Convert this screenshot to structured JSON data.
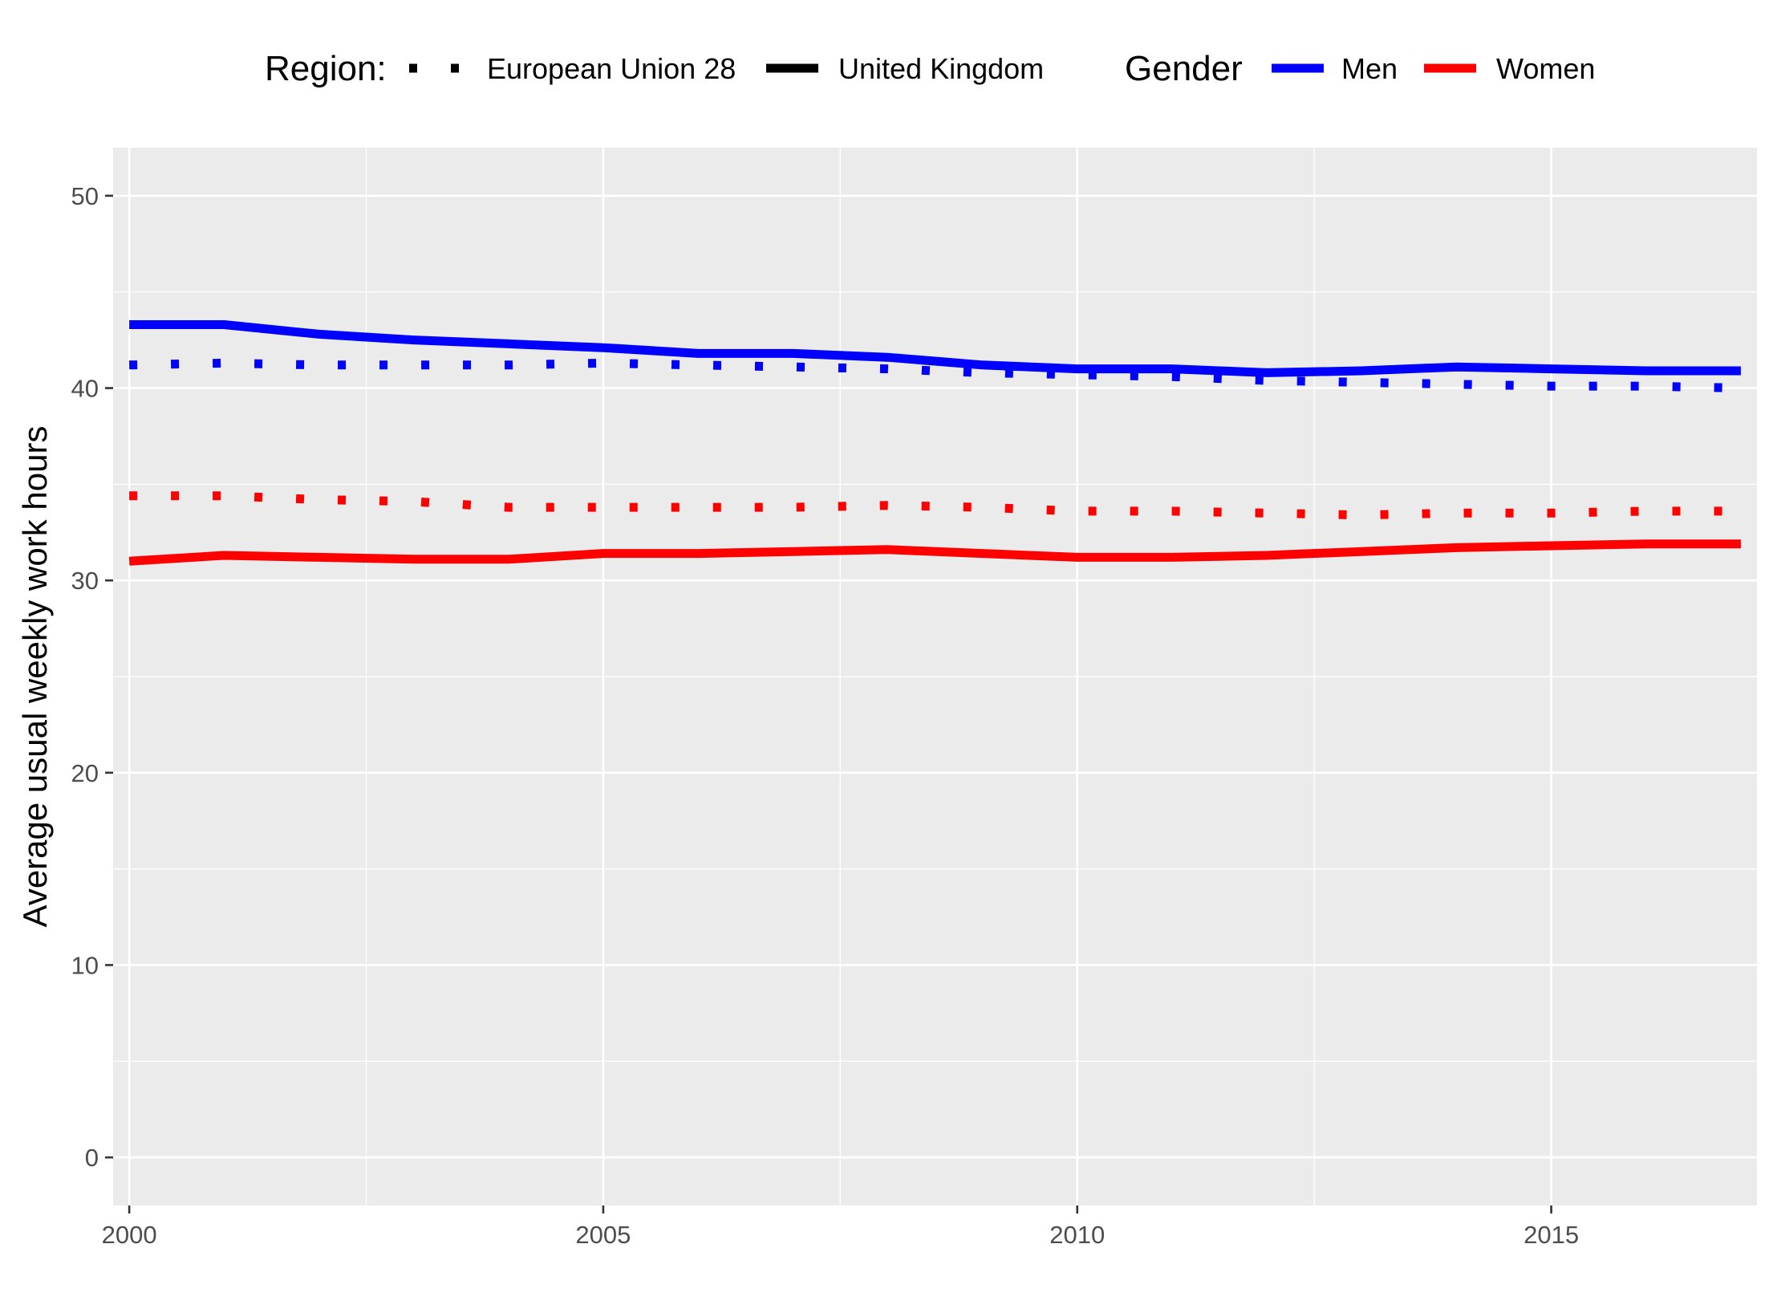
{
  "chart_data": {
    "type": "line",
    "xlabel": "",
    "ylabel": "Average usual weekly work hours",
    "xlim": [
      1999.83,
      2017.17
    ],
    "ylim": [
      -2.5,
      52.5
    ],
    "x_ticks": [
      2000,
      2005,
      2010,
      2015
    ],
    "y_ticks": [
      0,
      10,
      20,
      30,
      40,
      50
    ],
    "grid": true,
    "legend": {
      "position": "top",
      "groups": [
        {
          "title": "Region:",
          "entries": [
            {
              "label": "European Union 28",
              "linetype": "dotted"
            },
            {
              "label": "United Kingdom",
              "linetype": "solid"
            }
          ]
        },
        {
          "title": "Gender",
          "entries": [
            {
              "label": "Men",
              "color": "#0000ff"
            },
            {
              "label": "Women",
              "color": "#ff0000"
            }
          ]
        }
      ]
    },
    "x": [
      2000,
      2001,
      2002,
      2003,
      2004,
      2005,
      2006,
      2007,
      2008,
      2009,
      2010,
      2011,
      2012,
      2013,
      2014,
      2015,
      2016,
      2017
    ],
    "series": [
      {
        "region": "European Union 28",
        "gender": "Men",
        "color": "#0000ff",
        "linetype": "dotted",
        "values": [
          41.2,
          41.3,
          41.2,
          41.2,
          41.2,
          41.3,
          41.2,
          41.1,
          41.0,
          40.8,
          40.7,
          40.6,
          40.4,
          40.3,
          40.2,
          40.1,
          40.1,
          40.0
        ]
      },
      {
        "region": "United Kingdom",
        "gender": "Men",
        "color": "#0000ff",
        "linetype": "solid",
        "values": [
          43.3,
          43.3,
          42.8,
          42.5,
          42.3,
          42.1,
          41.8,
          41.8,
          41.6,
          41.2,
          41.0,
          41.0,
          40.8,
          40.9,
          41.1,
          41.0,
          40.9,
          40.9
        ]
      },
      {
        "region": "European Union 28",
        "gender": "Women",
        "color": "#ff0000",
        "linetype": "dotted",
        "values": [
          34.4,
          34.4,
          34.2,
          34.1,
          33.8,
          33.8,
          33.8,
          33.8,
          33.9,
          33.8,
          33.6,
          33.6,
          33.5,
          33.4,
          33.5,
          33.5,
          33.6,
          33.6
        ]
      },
      {
        "region": "United Kingdom",
        "gender": "Women",
        "color": "#ff0000",
        "linetype": "solid",
        "values": [
          31.0,
          31.3,
          31.2,
          31.1,
          31.1,
          31.4,
          31.4,
          31.5,
          31.6,
          31.4,
          31.2,
          31.2,
          31.3,
          31.5,
          31.7,
          31.8,
          31.9,
          31.9
        ]
      }
    ]
  }
}
